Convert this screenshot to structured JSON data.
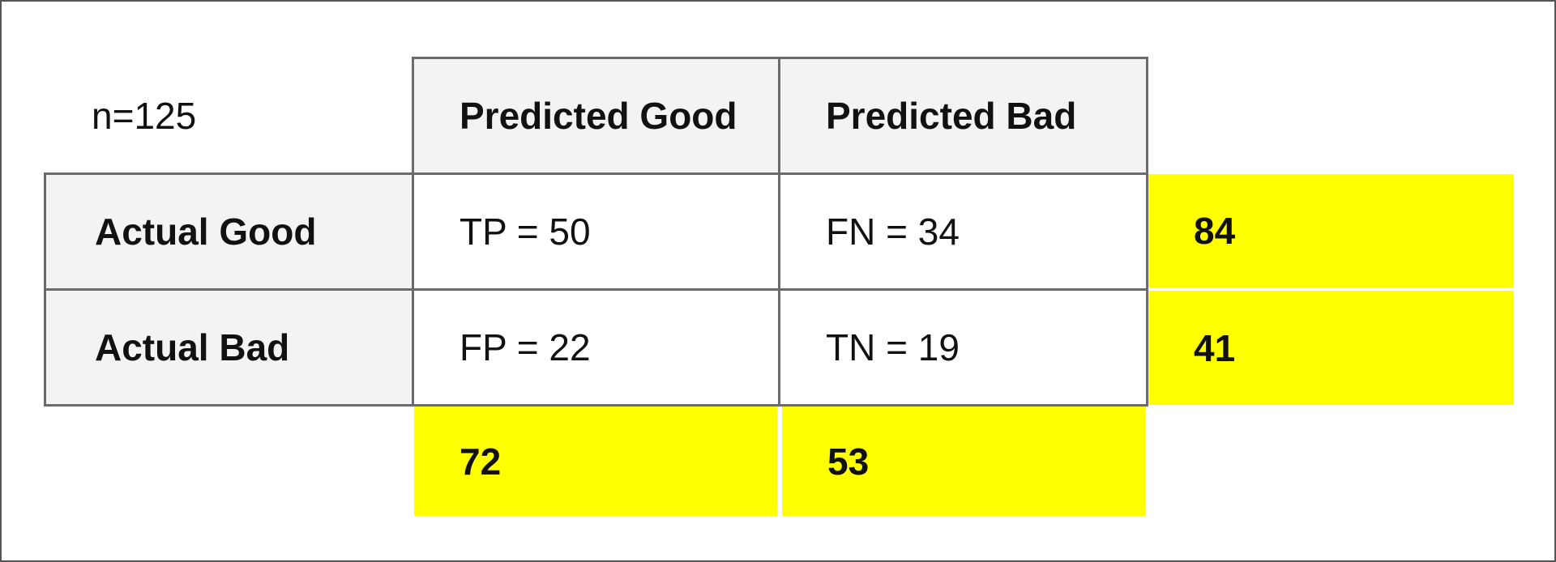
{
  "matrix": {
    "n_label": "n=125",
    "columns": {
      "predicted_good": "Predicted Good",
      "predicted_bad": "Predicted Bad"
    },
    "rows": {
      "actual_good": "Actual Good",
      "actual_bad": "Actual Bad"
    },
    "cells": {
      "tp": "TP = 50",
      "fn": "FN = 34",
      "fp": "FP = 22",
      "tn": "TN = 19"
    },
    "row_totals": {
      "actual_good": "84",
      "actual_bad": "41"
    },
    "column_totals": {
      "predicted_good": "72",
      "predicted_bad": "53"
    }
  },
  "colors": {
    "total_highlight": "#ffff00",
    "header_background": "#f3f3f3",
    "border": "#6b6b6b"
  }
}
